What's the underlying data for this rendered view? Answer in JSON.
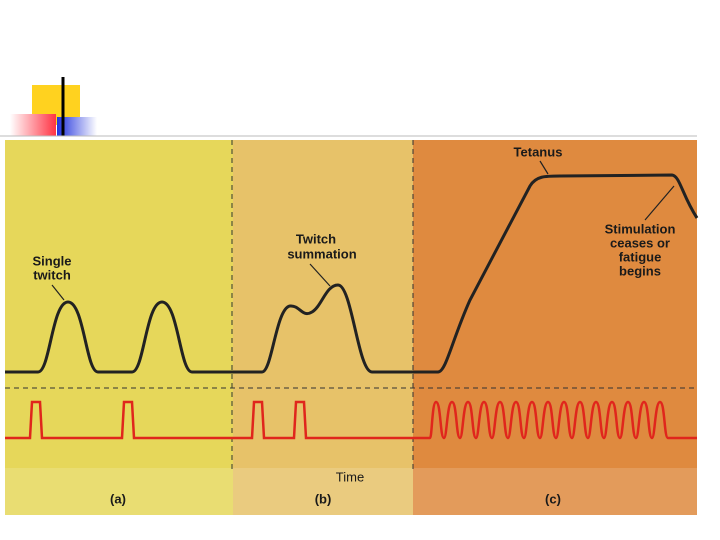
{
  "figure": {
    "labels": {
      "tetanus": "Tetanus",
      "stimulation": [
        "Stimulation",
        "ceases or",
        "fatigue",
        "begins"
      ],
      "single_twitch": [
        "Single",
        "twitch"
      ],
      "twitch_summation": [
        "Twitch",
        "summation"
      ],
      "time": "Time",
      "panel_a": "(a)",
      "panel_b": "(b)",
      "panel_c": "(c)"
    }
  }
}
